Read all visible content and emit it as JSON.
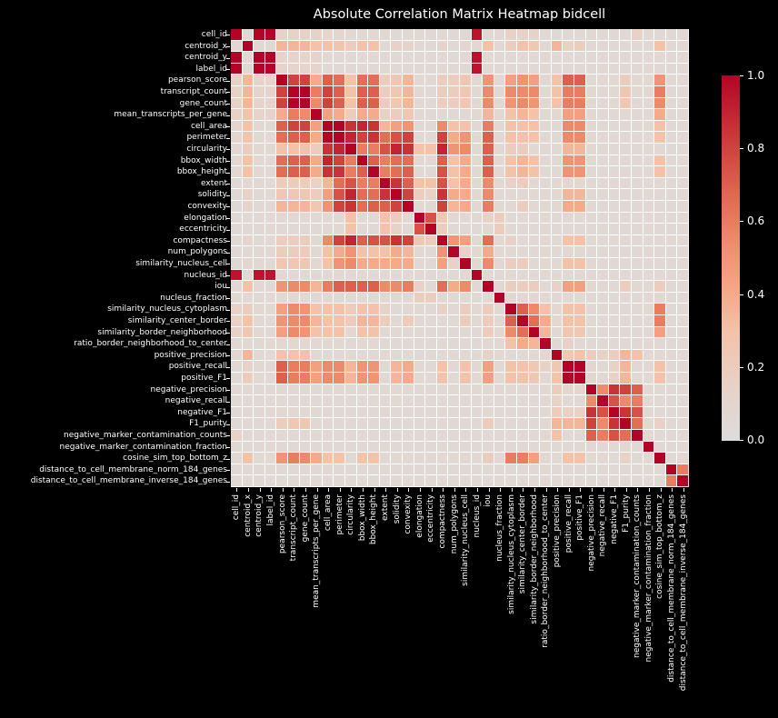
{
  "chart_data": {
    "type": "heatmap",
    "title": "Absolute Correlation Matrix Heatmap bidcell",
    "xlabel": "",
    "ylabel": "",
    "colormap": "coolwarm (upper half)",
    "vmin": 0.0,
    "vmax": 1.0,
    "colorbar_ticks": [
      "0.0",
      "0.2",
      "0.4",
      "0.6",
      "0.8",
      "1.0"
    ],
    "variables": [
      "cell_id",
      "centroid_x",
      "centroid_y",
      "label_id",
      "pearson_score",
      "transcript_count",
      "gene_count",
      "mean_transcripts_per_gene",
      "cell_area",
      "perimeter",
      "circularity",
      "bbox_width",
      "bbox_height",
      "extent",
      "solidity",
      "convexity",
      "elongation",
      "eccentricity",
      "compactness",
      "num_polygons",
      "similarity_nucleus_cell",
      "nucleus_id",
      "iou",
      "nucleus_fraction",
      "similarity_nucleus_cytoplasm",
      "similarity_center_border",
      "similarity_border_neighborhood",
      "ratio_border_neighborhood_to_center",
      "positive_precision",
      "positive_recall",
      "positive_F1",
      "negative_precision",
      "negative_recall",
      "negative_F1",
      "F1_purity",
      "negative_marker_contamination_counts",
      "negative_marker_contamination_fraction",
      "cosine_sim_top_bottom_z",
      "distance_to_cell_membrane_norm_184_genes",
      "distance_to_cell_membrane_inverse_184_genes"
    ],
    "default_value": 0.06,
    "pairs": [
      [
        0,
        2,
        1.0
      ],
      [
        0,
        3,
        1.0
      ],
      [
        2,
        3,
        1.0
      ],
      [
        0,
        21,
        0.95
      ],
      [
        2,
        21,
        0.95
      ],
      [
        3,
        21,
        0.95
      ],
      [
        0,
        4,
        0.15
      ],
      [
        0,
        5,
        0.15
      ],
      [
        0,
        6,
        0.15
      ],
      [
        0,
        7,
        0.15
      ],
      [
        0,
        8,
        0.1
      ],
      [
        0,
        9,
        0.1
      ],
      [
        0,
        24,
        0.15
      ],
      [
        0,
        25,
        0.15
      ],
      [
        0,
        26,
        0.15
      ],
      [
        0,
        35,
        0.15
      ],
      [
        2,
        4,
        0.12
      ],
      [
        2,
        5,
        0.12
      ],
      [
        2,
        6,
        0.12
      ],
      [
        2,
        7,
        0.12
      ],
      [
        3,
        4,
        0.12
      ],
      [
        3,
        5,
        0.12
      ],
      [
        3,
        6,
        0.12
      ],
      [
        3,
        7,
        0.12
      ],
      [
        1,
        4,
        0.35
      ],
      [
        1,
        5,
        0.35
      ],
      [
        1,
        6,
        0.35
      ],
      [
        1,
        7,
        0.3
      ],
      [
        1,
        8,
        0.3
      ],
      [
        1,
        9,
        0.28
      ],
      [
        1,
        10,
        0.2
      ],
      [
        1,
        11,
        0.3
      ],
      [
        1,
        12,
        0.3
      ],
      [
        1,
        14,
        0.15
      ],
      [
        1,
        15,
        0.12
      ],
      [
        1,
        18,
        0.12
      ],
      [
        1,
        20,
        0.1
      ],
      [
        1,
        22,
        0.3
      ],
      [
        1,
        24,
        0.2
      ],
      [
        1,
        25,
        0.3
      ],
      [
        1,
        26,
        0.25
      ],
      [
        1,
        28,
        0.35
      ],
      [
        1,
        29,
        0.15
      ],
      [
        1,
        30,
        0.2
      ],
      [
        1,
        37,
        0.3
      ],
      [
        4,
        5,
        0.8
      ],
      [
        4,
        6,
        0.8
      ],
      [
        4,
        7,
        0.4
      ],
      [
        4,
        8,
        0.7
      ],
      [
        4,
        9,
        0.65
      ],
      [
        4,
        10,
        0.3
      ],
      [
        4,
        11,
        0.65
      ],
      [
        4,
        12,
        0.65
      ],
      [
        4,
        13,
        0.2
      ],
      [
        4,
        14,
        0.25
      ],
      [
        4,
        15,
        0.35
      ],
      [
        4,
        18,
        0.2
      ],
      [
        4,
        19,
        0.2
      ],
      [
        4,
        20,
        0.25
      ],
      [
        4,
        22,
        0.5
      ],
      [
        4,
        24,
        0.45
      ],
      [
        4,
        25,
        0.5
      ],
      [
        4,
        26,
        0.45
      ],
      [
        4,
        28,
        0.3
      ],
      [
        4,
        29,
        0.7
      ],
      [
        4,
        30,
        0.7
      ],
      [
        4,
        34,
        0.2
      ],
      [
        4,
        37,
        0.5
      ],
      [
        5,
        6,
        1.0
      ],
      [
        5,
        7,
        0.6
      ],
      [
        5,
        8,
        0.8
      ],
      [
        5,
        9,
        0.7
      ],
      [
        5,
        10,
        0.3
      ],
      [
        5,
        11,
        0.7
      ],
      [
        5,
        12,
        0.7
      ],
      [
        5,
        13,
        0.2
      ],
      [
        5,
        14,
        0.25
      ],
      [
        5,
        15,
        0.35
      ],
      [
        5,
        18,
        0.2
      ],
      [
        5,
        19,
        0.2
      ],
      [
        5,
        20,
        0.25
      ],
      [
        5,
        22,
        0.55
      ],
      [
        5,
        24,
        0.55
      ],
      [
        5,
        25,
        0.55
      ],
      [
        5,
        26,
        0.55
      ],
      [
        5,
        28,
        0.3
      ],
      [
        5,
        29,
        0.6
      ],
      [
        5,
        30,
        0.6
      ],
      [
        5,
        34,
        0.25
      ],
      [
        5,
        37,
        0.6
      ],
      [
        6,
        7,
        0.55
      ],
      [
        6,
        8,
        0.8
      ],
      [
        6,
        9,
        0.7
      ],
      [
        6,
        10,
        0.3
      ],
      [
        6,
        11,
        0.7
      ],
      [
        6,
        12,
        0.7
      ],
      [
        6,
        13,
        0.2
      ],
      [
        6,
        14,
        0.25
      ],
      [
        6,
        15,
        0.35
      ],
      [
        6,
        18,
        0.2
      ],
      [
        6,
        19,
        0.2
      ],
      [
        6,
        20,
        0.25
      ],
      [
        6,
        22,
        0.55
      ],
      [
        6,
        24,
        0.5
      ],
      [
        6,
        25,
        0.55
      ],
      [
        6,
        26,
        0.5
      ],
      [
        6,
        28,
        0.3
      ],
      [
        6,
        29,
        0.6
      ],
      [
        6,
        30,
        0.6
      ],
      [
        6,
        34,
        0.25
      ],
      [
        6,
        37,
        0.55
      ],
      [
        7,
        8,
        0.45
      ],
      [
        7,
        9,
        0.4
      ],
      [
        7,
        10,
        0.2
      ],
      [
        7,
        11,
        0.4
      ],
      [
        7,
        12,
        0.4
      ],
      [
        7,
        13,
        0.15
      ],
      [
        7,
        14,
        0.2
      ],
      [
        7,
        15,
        0.25
      ],
      [
        7,
        22,
        0.35
      ],
      [
        7,
        24,
        0.3
      ],
      [
        7,
        25,
        0.35
      ],
      [
        7,
        26,
        0.3
      ],
      [
        7,
        29,
        0.45
      ],
      [
        7,
        30,
        0.45
      ],
      [
        7,
        37,
        0.4
      ],
      [
        8,
        9,
        1.0
      ],
      [
        8,
        10,
        0.85
      ],
      [
        8,
        11,
        0.9
      ],
      [
        8,
        12,
        0.85
      ],
      [
        8,
        13,
        0.35
      ],
      [
        8,
        14,
        0.45
      ],
      [
        8,
        15,
        0.5
      ],
      [
        8,
        18,
        0.55
      ],
      [
        8,
        19,
        0.3
      ],
      [
        8,
        20,
        0.3
      ],
      [
        8,
        22,
        0.6
      ],
      [
        8,
        24,
        0.3
      ],
      [
        8,
        25,
        0.3
      ],
      [
        8,
        26,
        0.3
      ],
      [
        8,
        29,
        0.55
      ],
      [
        8,
        30,
        0.55
      ],
      [
        8,
        37,
        0.3
      ],
      [
        9,
        10,
        0.9
      ],
      [
        9,
        11,
        0.8
      ],
      [
        9,
        12,
        0.85
      ],
      [
        9,
        13,
        0.65
      ],
      [
        9,
        14,
        0.75
      ],
      [
        9,
        15,
        0.8
      ],
      [
        9,
        18,
        0.8
      ],
      [
        9,
        19,
        0.4
      ],
      [
        9,
        20,
        0.5
      ],
      [
        9,
        22,
        0.7
      ],
      [
        9,
        24,
        0.3
      ],
      [
        9,
        25,
        0.3
      ],
      [
        9,
        26,
        0.3
      ],
      [
        9,
        29,
        0.55
      ],
      [
        9,
        30,
        0.55
      ],
      [
        9,
        37,
        0.3
      ],
      [
        10,
        11,
        0.6
      ],
      [
        10,
        12,
        0.6
      ],
      [
        10,
        13,
        0.75
      ],
      [
        10,
        14,
        0.9
      ],
      [
        10,
        15,
        0.85
      ],
      [
        10,
        16,
        0.3
      ],
      [
        10,
        17,
        0.3
      ],
      [
        10,
        18,
        0.9
      ],
      [
        10,
        19,
        0.5
      ],
      [
        10,
        20,
        0.55
      ],
      [
        10,
        22,
        0.7
      ],
      [
        10,
        24,
        0.2
      ],
      [
        10,
        25,
        0.2
      ],
      [
        10,
        29,
        0.35
      ],
      [
        10,
        30,
        0.35
      ],
      [
        11,
        12,
        0.7
      ],
      [
        11,
        13,
        0.6
      ],
      [
        11,
        14,
        0.65
      ],
      [
        11,
        15,
        0.65
      ],
      [
        11,
        18,
        0.7
      ],
      [
        11,
        19,
        0.3
      ],
      [
        11,
        20,
        0.4
      ],
      [
        11,
        22,
        0.7
      ],
      [
        11,
        24,
        0.3
      ],
      [
        11,
        25,
        0.35
      ],
      [
        11,
        26,
        0.3
      ],
      [
        11,
        29,
        0.5
      ],
      [
        11,
        30,
        0.5
      ],
      [
        11,
        37,
        0.3
      ],
      [
        12,
        13,
        0.6
      ],
      [
        12,
        14,
        0.65
      ],
      [
        12,
        15,
        0.7
      ],
      [
        12,
        18,
        0.75
      ],
      [
        12,
        19,
        0.3
      ],
      [
        12,
        20,
        0.4
      ],
      [
        12,
        22,
        0.7
      ],
      [
        12,
        24,
        0.3
      ],
      [
        12,
        25,
        0.35
      ],
      [
        12,
        26,
        0.3
      ],
      [
        12,
        29,
        0.5
      ],
      [
        12,
        30,
        0.5
      ],
      [
        12,
        37,
        0.3
      ],
      [
        13,
        14,
        0.85
      ],
      [
        13,
        15,
        0.7
      ],
      [
        13,
        16,
        0.3
      ],
      [
        13,
        17,
        0.3
      ],
      [
        13,
        18,
        0.75
      ],
      [
        13,
        19,
        0.3
      ],
      [
        13,
        20,
        0.4
      ],
      [
        13,
        22,
        0.55
      ],
      [
        13,
        24,
        0.15
      ],
      [
        13,
        25,
        0.2
      ],
      [
        14,
        15,
        0.8
      ],
      [
        14,
        16,
        0.2
      ],
      [
        14,
        17,
        0.15
      ],
      [
        14,
        18,
        0.85
      ],
      [
        14,
        19,
        0.4
      ],
      [
        14,
        20,
        0.4
      ],
      [
        14,
        22,
        0.55
      ],
      [
        14,
        29,
        0.35
      ],
      [
        14,
        30,
        0.35
      ],
      [
        15,
        18,
        0.8
      ],
      [
        15,
        19,
        0.35
      ],
      [
        15,
        20,
        0.4
      ],
      [
        15,
        22,
        0.6
      ],
      [
        15,
        25,
        0.2
      ],
      [
        15,
        29,
        0.4
      ],
      [
        15,
        30,
        0.4
      ],
      [
        16,
        17,
        0.75
      ],
      [
        16,
        18,
        0.25
      ],
      [
        16,
        22,
        0.15
      ],
      [
        16,
        23,
        0.2
      ],
      [
        17,
        18,
        0.2
      ],
      [
        17,
        23,
        0.2
      ],
      [
        18,
        19,
        0.5
      ],
      [
        18,
        20,
        0.45
      ],
      [
        18,
        22,
        0.65
      ],
      [
        18,
        24,
        0.15
      ],
      [
        18,
        29,
        0.3
      ],
      [
        18,
        30,
        0.3
      ],
      [
        19,
        20,
        0.15
      ],
      [
        19,
        22,
        0.4
      ],
      [
        20,
        22,
        0.55
      ],
      [
        20,
        24,
        0.2
      ],
      [
        20,
        25,
        0.2
      ],
      [
        20,
        29,
        0.3
      ],
      [
        20,
        30,
        0.3
      ],
      [
        22,
        24,
        0.2
      ],
      [
        22,
        25,
        0.2
      ],
      [
        22,
        26,
        0.2
      ],
      [
        22,
        28,
        0.15
      ],
      [
        22,
        29,
        0.45
      ],
      [
        22,
        30,
        0.45
      ],
      [
        22,
        34,
        0.2
      ],
      [
        22,
        37,
        0.2
      ],
      [
        24,
        25,
        0.7
      ],
      [
        24,
        26,
        0.55
      ],
      [
        24,
        27,
        0.3
      ],
      [
        24,
        29,
        0.3
      ],
      [
        24,
        30,
        0.3
      ],
      [
        24,
        37,
        0.6
      ],
      [
        25,
        26,
        0.65
      ],
      [
        25,
        27,
        0.4
      ],
      [
        25,
        29,
        0.3
      ],
      [
        25,
        30,
        0.3
      ],
      [
        25,
        37,
        0.6
      ],
      [
        26,
        27,
        0.35
      ],
      [
        26,
        29,
        0.25
      ],
      [
        26,
        30,
        0.25
      ],
      [
        26,
        37,
        0.45
      ],
      [
        27,
        29,
        0.15
      ],
      [
        28,
        29,
        0.25
      ],
      [
        28,
        30,
        0.3
      ],
      [
        28,
        31,
        0.2
      ],
      [
        28,
        32,
        0.15
      ],
      [
        28,
        33,
        0.2
      ],
      [
        28,
        34,
        0.35
      ],
      [
        28,
        35,
        0.3
      ],
      [
        29,
        30,
        1.0
      ],
      [
        29,
        31,
        0.1
      ],
      [
        29,
        33,
        0.15
      ],
      [
        29,
        34,
        0.35
      ],
      [
        29,
        37,
        0.3
      ],
      [
        30,
        31,
        0.1
      ],
      [
        30,
        33,
        0.15
      ],
      [
        30,
        34,
        0.35
      ],
      [
        30,
        37,
        0.3
      ],
      [
        31,
        32,
        0.55
      ],
      [
        31,
        33,
        0.85
      ],
      [
        31,
        34,
        0.8
      ],
      [
        31,
        35,
        0.7
      ],
      [
        32,
        33,
        0.75
      ],
      [
        32,
        34,
        0.55
      ],
      [
        32,
        35,
        0.6
      ],
      [
        33,
        34,
        0.85
      ],
      [
        33,
        35,
        0.75
      ],
      [
        34,
        35,
        0.65
      ],
      [
        34,
        37,
        0.15
      ],
      [
        38,
        39,
        0.6
      ]
    ]
  }
}
